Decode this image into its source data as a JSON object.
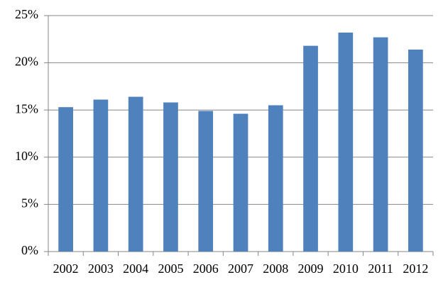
{
  "chart_data": {
    "type": "bar",
    "categories": [
      "2002",
      "2003",
      "2004",
      "2005",
      "2006",
      "2007",
      "2008",
      "2009",
      "2010",
      "2011",
      "2012"
    ],
    "values": [
      15.3,
      16.1,
      16.4,
      15.8,
      14.9,
      14.6,
      15.5,
      21.8,
      23.2,
      22.7,
      21.4
    ],
    "color": "#4f81bd",
    "ylim": [
      0,
      25
    ],
    "yticks": [
      {
        "value": 0,
        "label": "0%"
      },
      {
        "value": 5,
        "label": "5%"
      },
      {
        "value": 10,
        "label": "10%"
      },
      {
        "value": 15,
        "label": "15%"
      },
      {
        "value": 20,
        "label": "20%"
      },
      {
        "value": 25,
        "label": "25%"
      }
    ],
    "grid": true
  }
}
